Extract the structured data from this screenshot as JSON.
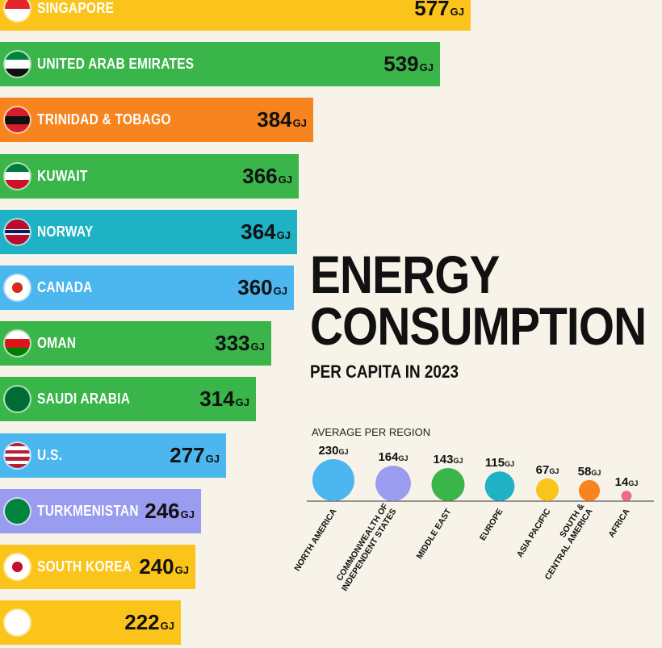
{
  "title": "ENERGY CONSUMPTION",
  "title_line1": "ENERGY",
  "title_line2": "CONSUMPTION",
  "subtitle": "PER CAPITA IN 2023",
  "region_section_label": "AVERAGE PER REGION",
  "unit": "GJ",
  "colors": {
    "background": "#f7f3e8",
    "yellow": "#fbc41a",
    "green": "#3ab54a",
    "orange": "#f7841e",
    "teal": "#1fb1c4",
    "light_blue": "#4cb6ef",
    "purple": "#9a9cf0"
  },
  "chart_data": [
    {
      "type": "bar",
      "orientation": "horizontal",
      "title": "ENERGY CONSUMPTION",
      "subtitle": "PER CAPITA IN 2023",
      "unit": "GJ",
      "xlim": [
        0,
        620
      ],
      "categories": [
        "SINGAPORE",
        "UNITED ARAB EMIRATES",
        "TRINIDAD & TOBAGO",
        "KUWAIT",
        "NORWAY",
        "CANADA",
        "OMAN",
        "SAUDI ARABIA",
        "U.S.",
        "TURKMENISTAN",
        "SOUTH KOREA",
        ""
      ],
      "values": [
        577,
        539,
        384,
        366,
        364,
        360,
        333,
        314,
        277,
        246,
        240,
        222
      ],
      "value_labels": [
        "577",
        "539",
        "384",
        "366",
        "364",
        "360",
        "333",
        "314",
        "277",
        "246",
        "240",
        "222"
      ],
      "bar_colors": [
        "#fbc41a",
        "#3ab54a",
        "#f7841e",
        "#3ab54a",
        "#1fb1c4",
        "#4cb6ef",
        "#3ab54a",
        "#3ab54a",
        "#4cb6ef",
        "#9a9cf0",
        "#fbc41a",
        "#fbc41a"
      ],
      "flags": [
        "singapore-flag-icon",
        "uae-flag-icon",
        "trinidad-flag-icon",
        "kuwait-flag-icon",
        "norway-flag-icon",
        "canada-flag-icon",
        "oman-flag-icon",
        "saudi-flag-icon",
        "us-flag-icon",
        "turkmenistan-flag-icon",
        "south-korea-flag-icon",
        "partial-flag-icon"
      ]
    },
    {
      "type": "bubble",
      "title": "AVERAGE PER REGION",
      "unit": "GJ",
      "categories": [
        "NORTH AMERICA",
        "COMMONWEALTH OF INDEPENDENT STATES",
        "MIDDLE EAST",
        "EUROPE",
        "ASIA PACIFIC",
        "SOUTH & CENTRAL AMERICA",
        "AFRICA"
      ],
      "category_label_lines": [
        [
          "NORTH AMERICA"
        ],
        [
          "COMMONWEALTH OF",
          "INDEPENDENT STATES"
        ],
        [
          "MIDDLE EAST"
        ],
        [
          "EUROPE"
        ],
        [
          "ASIA PACIFIC"
        ],
        [
          "SOUTH &",
          "CENTRAL AMERICA"
        ],
        [
          "AFRICA"
        ]
      ],
      "values": [
        230,
        164,
        143,
        115,
        67,
        58,
        14
      ],
      "value_labels": [
        "230",
        "164",
        "143",
        "115",
        "67",
        "58",
        "14"
      ],
      "colors": [
        "#4cb6ef",
        "#9a9cf0",
        "#3ab54a",
        "#1fb1c4",
        "#fbc41a",
        "#f7841e",
        "#f06a8a"
      ]
    }
  ]
}
